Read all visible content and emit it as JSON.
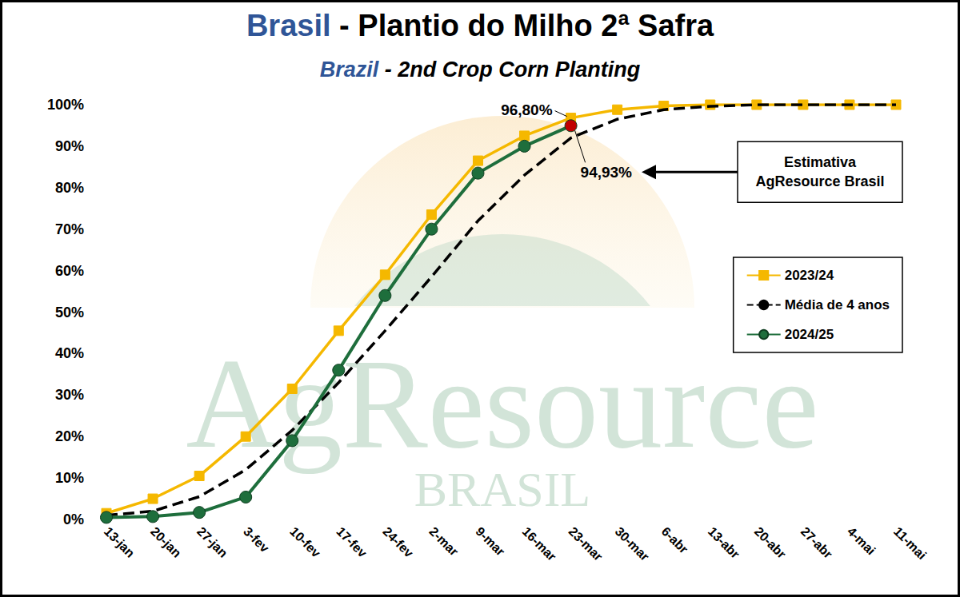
{
  "chart_data": {
    "type": "line",
    "title": "Brasil - Plantio do Milho 2ª Safra",
    "subtitle": "Brazil - 2nd Crop Corn Planting",
    "categories": [
      "13-jan",
      "20-jan",
      "27-jan",
      "3-fev",
      "10-fev",
      "17-fev",
      "24-fev",
      "2-mar",
      "9-mar",
      "16-mar",
      "23-mar",
      "30-mar",
      "6-abr",
      "13-abr",
      "20-abr",
      "27-abr",
      "4-mai",
      "11-mai"
    ],
    "series": [
      {
        "name": "2023/24",
        "color": "#f5b800",
        "marker": "square",
        "line_style": "solid",
        "values": [
          1.5,
          5,
          10.5,
          20,
          31.5,
          45.5,
          59,
          73.5,
          86.5,
          92.5,
          96.8,
          98.8,
          99.7,
          100,
          100,
          100,
          100,
          100
        ]
      },
      {
        "name": "Média de 4 anos",
        "color": "#000000",
        "marker": "none",
        "line_style": "dashed",
        "values": [
          1,
          2,
          5.5,
          12,
          21.5,
          33,
          45.5,
          58.5,
          72,
          83,
          92,
          96.5,
          98.8,
          99.6,
          100,
          100,
          100,
          100
        ]
      },
      {
        "name": "2024/25",
        "color": "#1e6e3c",
        "marker": "circle",
        "line_style": "solid",
        "values": [
          0.5,
          0.7,
          1.7,
          5.4,
          19,
          36,
          54,
          70,
          83.5,
          90,
          94.93,
          null,
          null,
          null,
          null,
          null,
          null,
          null
        ],
        "colors": [
          "#1e6e3c",
          "#1e6e3c",
          "#1e6e3c",
          "#1e6e3c",
          "#1e6e3c",
          "#1e6e3c",
          "#1e6e3c",
          "#1e6e3c",
          "#1e6e3c",
          "#1e6e3c",
          "#c00000",
          "#1e6e3c",
          "#1e6e3c",
          "#1e6e3c",
          "#1e6e3c",
          "#1e6e3c",
          "#1e6e3c",
          "#1e6e3c"
        ]
      }
    ],
    "ylim": [
      0,
      100
    ],
    "yticks": [
      {
        "value": 0,
        "label": "0%"
      },
      {
        "value": 10,
        "label": "10%"
      },
      {
        "value": 20,
        "label": "20%"
      },
      {
        "value": 30,
        "label": "30%"
      },
      {
        "value": 40,
        "label": "40%"
      },
      {
        "value": 50,
        "label": "50%"
      },
      {
        "value": 60,
        "label": "60%"
      },
      {
        "value": 70,
        "label": "70%"
      },
      {
        "value": 80,
        "label": "80%"
      },
      {
        "value": 90,
        "label": "90%"
      },
      {
        "value": 100,
        "label": "100%"
      }
    ],
    "grid": false,
    "legend": "right",
    "annotations": [
      {
        "text": "96,80%",
        "series": "2023/24",
        "category": "23-mar",
        "value": 96.8
      },
      {
        "text": "94,93%",
        "series": "2024/25",
        "category": "23-mar",
        "value": 94.93
      },
      {
        "text": "Estimativa AgResource Brasil",
        "series": "2024/25",
        "category": "23-mar",
        "value": 94.93
      }
    ],
    "watermark": [
      "AgResource",
      "BRASIL"
    ]
  }
}
